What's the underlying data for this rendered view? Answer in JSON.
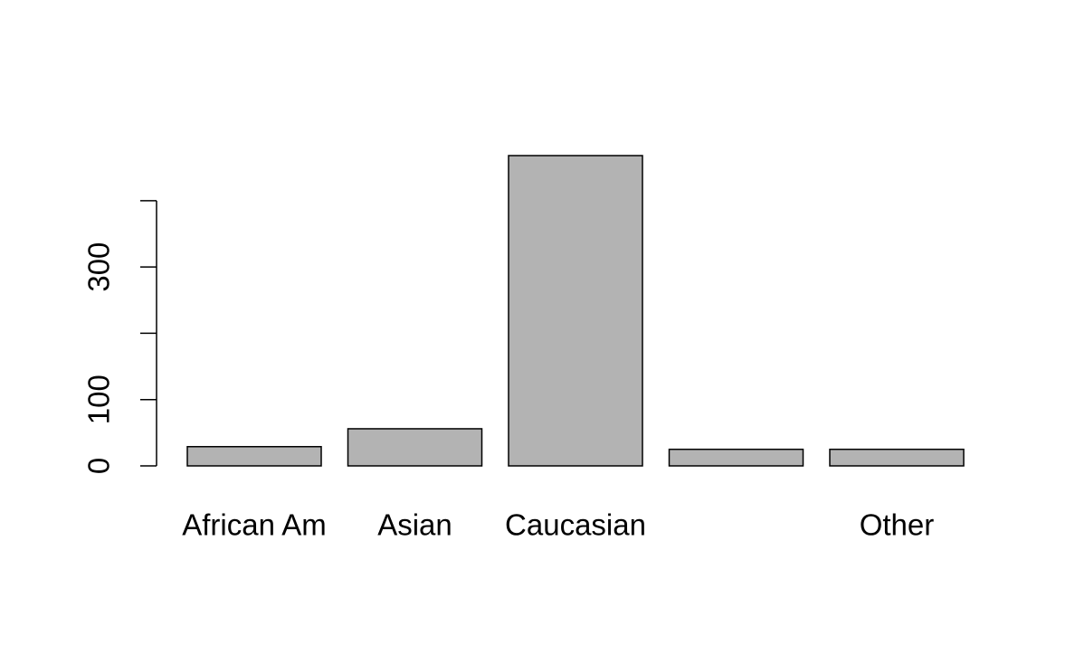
{
  "chart_data": {
    "type": "bar",
    "categories": [
      "African Am",
      "Asian",
      "Caucasian",
      null,
      "Other"
    ],
    "values": [
      29,
      56,
      468,
      25,
      25
    ],
    "color": "#b3b3b3",
    "ylim": [
      0,
      468
    ],
    "yticks": [
      0,
      100,
      {
        "value": 200,
        "label": null
      },
      300,
      {
        "value": 400,
        "label": null
      }
    ]
  }
}
